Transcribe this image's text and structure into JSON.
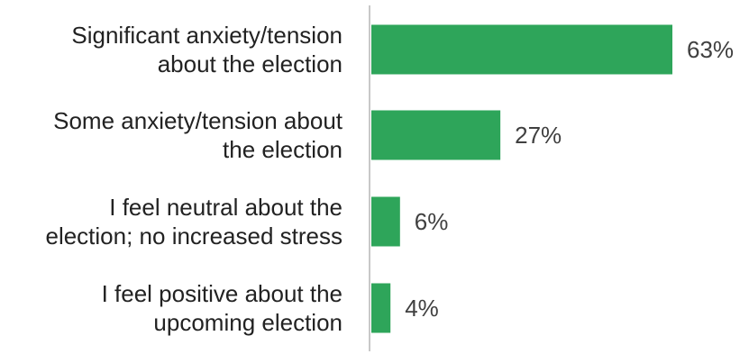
{
  "chart_data": {
    "type": "bar",
    "orientation": "horizontal",
    "categories": [
      [
        "Significant anxiety/tension",
        "about the election"
      ],
      [
        "Some anxiety/tension about",
        "the election"
      ],
      [
        "I feel neutral about the",
        "election; no increased stress"
      ],
      [
        "I feel positive about the",
        "upcoming election"
      ]
    ],
    "values": [
      63,
      27,
      6,
      4
    ],
    "value_labels": [
      "63%",
      "27%",
      "6%",
      "4%"
    ],
    "bar_color": "#2ea55a",
    "axis_color": "#c8c8c8",
    "xlim": [
      0,
      63
    ],
    "grid": false,
    "legend": "none"
  }
}
